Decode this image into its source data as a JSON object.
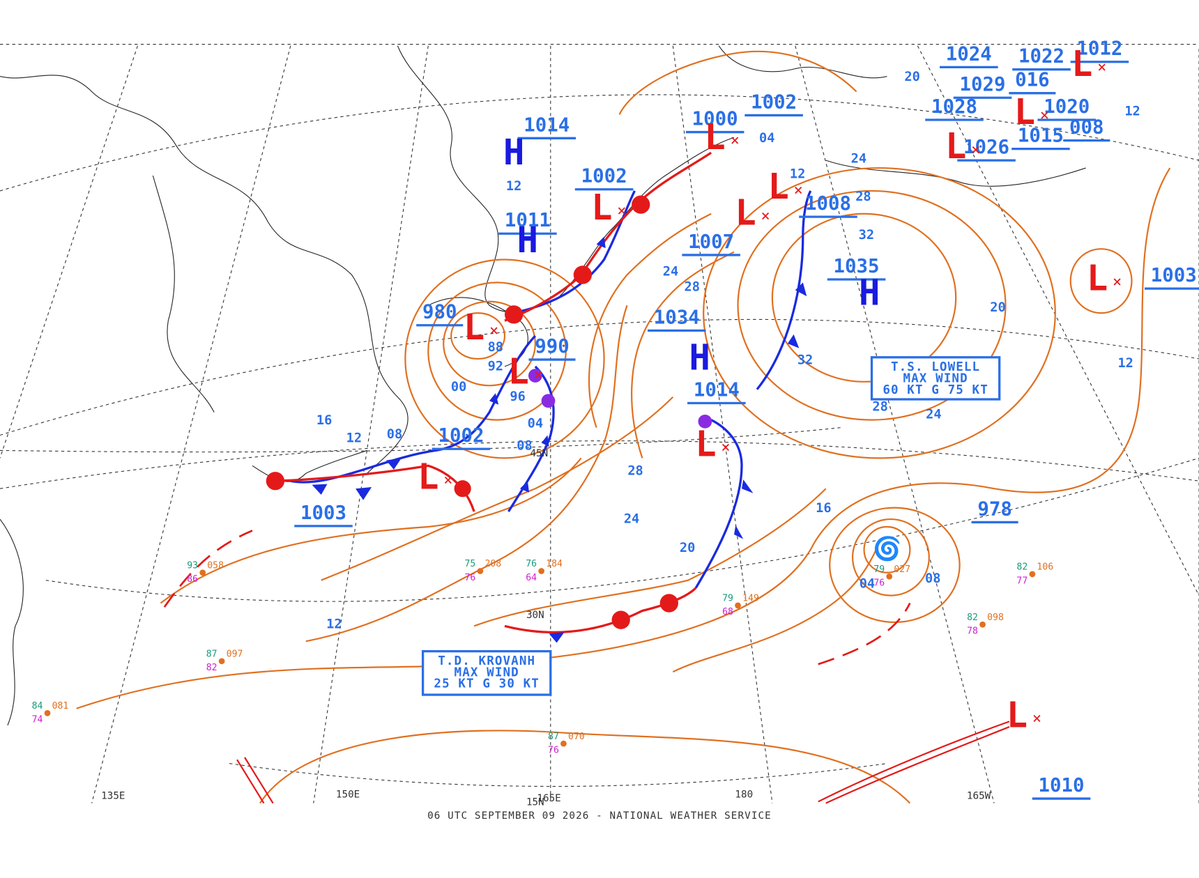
{
  "footer": "06 UTC SEPTEMBER 09 2026 - NATIONAL WEATHER SERVICE",
  "colors": {
    "H": "#1a1ae0",
    "L": "#e41a1a"
  },
  "longitudes": [
    "135E",
    "150E",
    "165E",
    "180",
    "165W"
  ],
  "latitudes": [
    "45N",
    "30N",
    "15N"
  ],
  "pressure_labels": [
    "1014",
    "1011",
    "1002",
    "1000",
    "1002",
    "1007",
    "1008",
    "1035",
    "1034",
    "1014",
    "980",
    "990",
    "1002",
    "1003",
    "978",
    "1003",
    "1010",
    "1024",
    "1022",
    "1012",
    "1029",
    "016",
    "1020",
    "1028",
    "1026",
    "1015",
    "008"
  ],
  "centers": [
    "H",
    "H",
    "H",
    "H",
    "L",
    "L",
    "L",
    "L",
    "L",
    "L",
    "L",
    "L",
    "L",
    "L",
    "L",
    "L",
    "L"
  ],
  "isobar_labels": [
    "16",
    "12",
    "08",
    "00",
    "92",
    "96",
    "04",
    "08",
    "88",
    "28",
    "24",
    "20",
    "12",
    "16",
    "04",
    "08",
    "28",
    "24",
    "32",
    "32",
    "20",
    "12",
    "24",
    "28",
    "24",
    "28",
    "12",
    "04",
    "12",
    "20",
    "12"
  ],
  "storm_boxes": [
    {
      "lines": [
        "T.S. LOWELL",
        "MAX WIND",
        "60 KT G 75 KT"
      ]
    },
    {
      "lines": [
        "T.D. KROVANH",
        "MAX WIND",
        "25 KT G 30 KT"
      ]
    }
  ],
  "stations": [
    {
      "temp": "75",
      "dew": "76",
      "pressure": "208"
    },
    {
      "temp": "76",
      "dew": "64",
      "pressure": "184"
    },
    {
      "temp": "79",
      "dew": "76",
      "pressure": "027"
    },
    {
      "temp": "82",
      "dew": "78",
      "pressure": "098"
    },
    {
      "temp": "79",
      "dew": "68",
      "pressure": "149"
    },
    {
      "temp": "82",
      "dew": "77",
      "pressure": "106"
    },
    {
      "temp": "93",
      "dew": "86",
      "pressure": "058"
    },
    {
      "temp": "87",
      "dew": "82",
      "pressure": "097"
    },
    {
      "temp": "84",
      "dew": "74",
      "pressure": "081"
    },
    {
      "temp": "87",
      "dew": "76",
      "pressure": "070"
    }
  ]
}
